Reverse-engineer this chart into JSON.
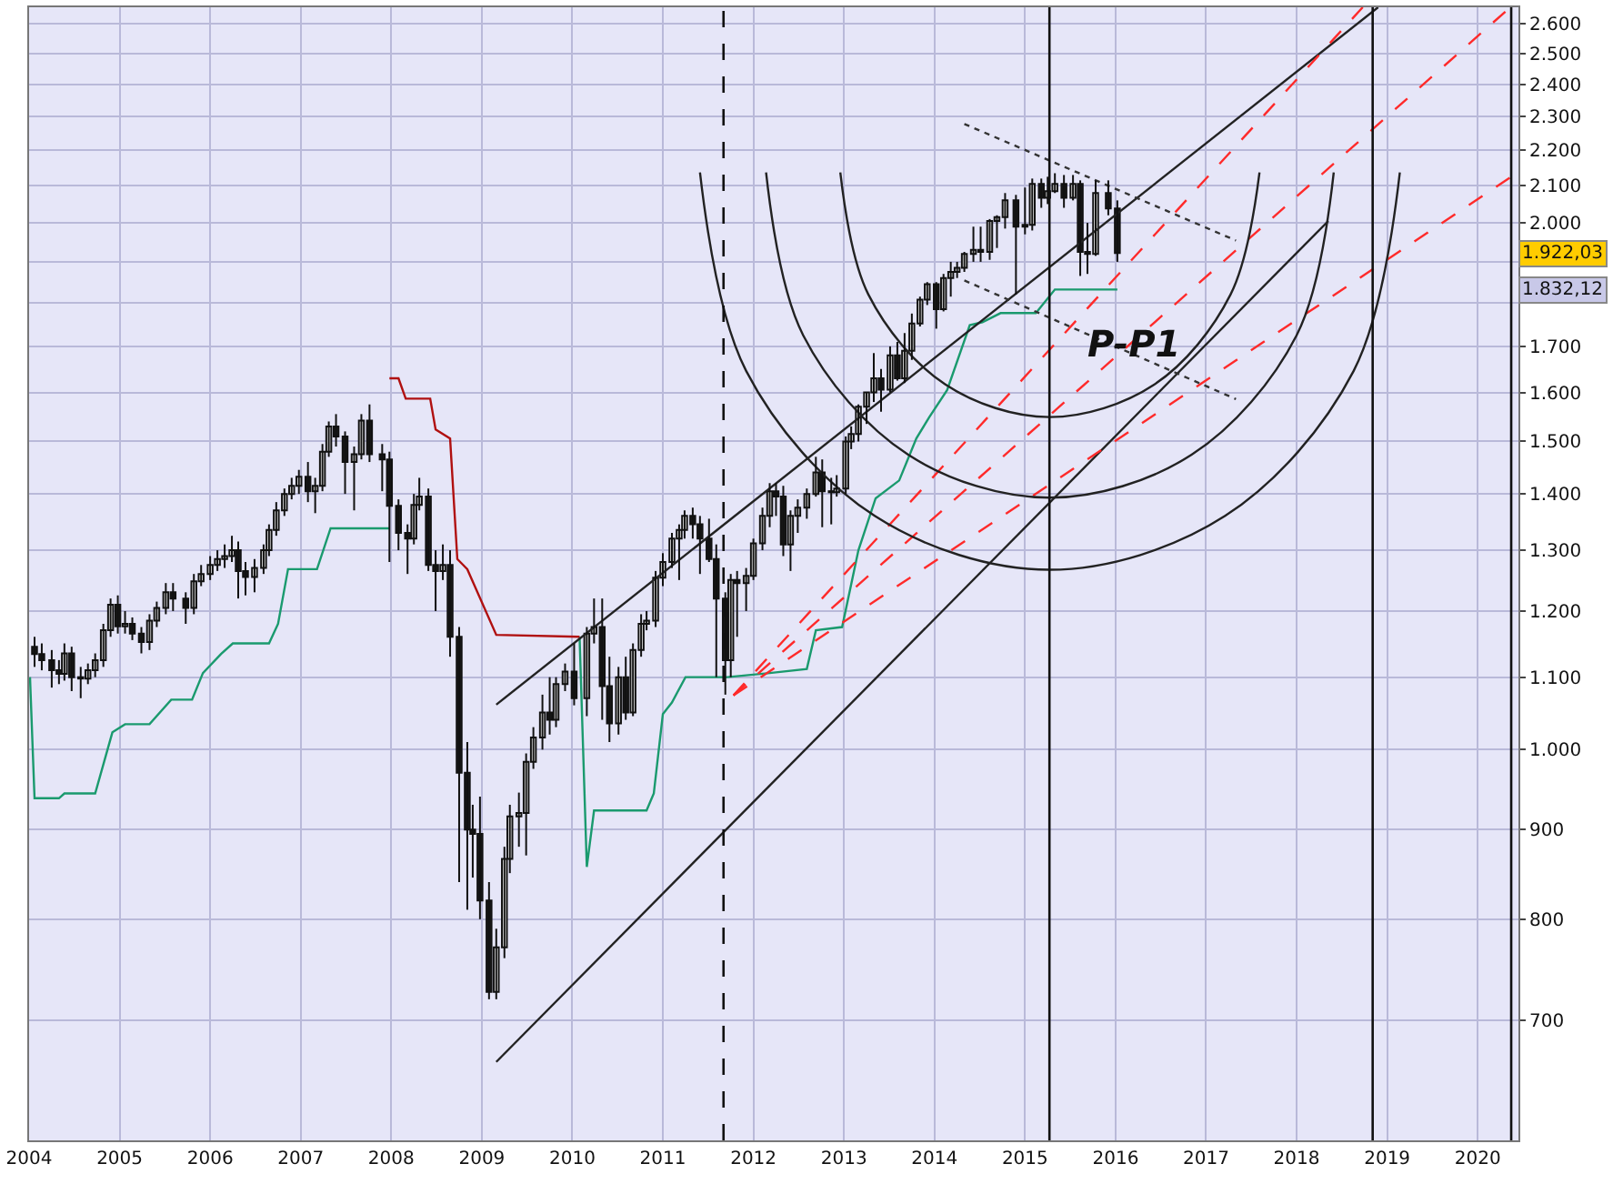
{
  "chart_data": {
    "type": "candlestick",
    "x": [
      2004.06,
      2004.14,
      2004.25,
      2004.33,
      2004.39,
      2004.47,
      2004.57,
      2004.65,
      2004.73,
      2004.82,
      2004.9,
      2004.98,
      2005.06,
      2005.14,
      2005.24,
      2005.33,
      2005.41,
      2005.51,
      2005.59,
      2005.73,
      2005.82,
      2005.9,
      2006.0,
      2006.08,
      2006.16,
      2006.24,
      2006.31,
      2006.39,
      2006.49,
      2006.59,
      2006.65,
      2006.73,
      2006.82,
      2006.9,
      2006.98,
      2007.08,
      2007.16,
      2007.24,
      2007.31,
      2007.39,
      2007.49,
      2007.59,
      2007.67,
      2007.76,
      2007.9,
      2007.98,
      2008.08,
      2008.18,
      2008.25,
      2008.31,
      2008.41,
      2008.49,
      2008.57,
      2008.65,
      2008.75,
      2008.84,
      2008.9,
      2008.98,
      2009.08,
      2009.16,
      2009.25,
      2009.31,
      2009.41,
      2009.49,
      2009.57,
      2009.67,
      2009.75,
      2009.82,
      2009.92,
      2010.02,
      2010.16,
      2010.24,
      2010.33,
      2010.41,
      2010.51,
      2010.59,
      2010.67,
      2010.76,
      2010.82,
      2010.92,
      2011.0,
      2011.1,
      2011.18,
      2011.24,
      2011.33,
      2011.41,
      2011.51,
      2011.59,
      2011.69,
      2011.75,
      2011.82,
      2011.92,
      2012.0,
      2012.1,
      2012.18,
      2012.25,
      2012.33,
      2012.41,
      2012.49,
      2012.59,
      2012.69,
      2012.76,
      2012.86,
      2012.92,
      2013.02,
      2013.08,
      2013.16,
      2013.25,
      2013.33,
      2013.41,
      2013.51,
      2013.59,
      2013.67,
      2013.75,
      2013.84,
      2013.92,
      2014.02,
      2014.1,
      2014.18,
      2014.25,
      2014.33,
      2014.43,
      2014.51,
      2014.61,
      2014.69,
      2014.78,
      2014.9,
      2015.0,
      2015.08,
      2015.18,
      2015.25,
      2015.33,
      2015.43,
      2015.53,
      2015.61,
      2015.69,
      2015.78,
      2015.92,
      2016.02
    ],
    "ohlc": [
      [
        1145,
        1160,
        1115,
        1134
      ],
      [
        1134,
        1150,
        1110,
        1125
      ],
      [
        1125,
        1140,
        1085,
        1110
      ],
      [
        1110,
        1125,
        1090,
        1105
      ],
      [
        1105,
        1150,
        1095,
        1135
      ],
      [
        1135,
        1145,
        1080,
        1100
      ],
      [
        1100,
        1115,
        1070,
        1098
      ],
      [
        1098,
        1120,
        1090,
        1110
      ],
      [
        1110,
        1135,
        1100,
        1125
      ],
      [
        1125,
        1180,
        1115,
        1170
      ],
      [
        1170,
        1220,
        1160,
        1210
      ],
      [
        1210,
        1225,
        1165,
        1176
      ],
      [
        1176,
        1200,
        1165,
        1180
      ],
      [
        1180,
        1190,
        1155,
        1165
      ],
      [
        1165,
        1175,
        1135,
        1152
      ],
      [
        1152,
        1195,
        1140,
        1185
      ],
      [
        1185,
        1215,
        1175,
        1205
      ],
      [
        1205,
        1245,
        1195,
        1230
      ],
      [
        1230,
        1245,
        1200,
        1220
      ],
      [
        1220,
        1230,
        1180,
        1205
      ],
      [
        1205,
        1260,
        1195,
        1248
      ],
      [
        1248,
        1275,
        1240,
        1260
      ],
      [
        1260,
        1290,
        1250,
        1275
      ],
      [
        1275,
        1300,
        1265,
        1285
      ],
      [
        1285,
        1310,
        1270,
        1290
      ],
      [
        1290,
        1325,
        1280,
        1300
      ],
      [
        1300,
        1315,
        1220,
        1265
      ],
      [
        1265,
        1280,
        1225,
        1255
      ],
      [
        1255,
        1285,
        1230,
        1270
      ],
      [
        1270,
        1310,
        1260,
        1300
      ],
      [
        1300,
        1345,
        1290,
        1335
      ],
      [
        1335,
        1385,
        1325,
        1370
      ],
      [
        1370,
        1410,
        1360,
        1400
      ],
      [
        1400,
        1430,
        1390,
        1415
      ],
      [
        1415,
        1445,
        1400,
        1432
      ],
      [
        1432,
        1460,
        1385,
        1405
      ],
      [
        1405,
        1430,
        1365,
        1415
      ],
      [
        1415,
        1495,
        1405,
        1480
      ],
      [
        1480,
        1540,
        1470,
        1530
      ],
      [
        1530,
        1555,
        1490,
        1510
      ],
      [
        1510,
        1520,
        1400,
        1460
      ],
      [
        1460,
        1490,
        1370,
        1475
      ],
      [
        1475,
        1555,
        1465,
        1542
      ],
      [
        1542,
        1575,
        1460,
        1475
      ],
      [
        1475,
        1495,
        1405,
        1465
      ],
      [
        1465,
        1480,
        1280,
        1378
      ],
      [
        1378,
        1390,
        1300,
        1330
      ],
      [
        1330,
        1345,
        1260,
        1320
      ],
      [
        1320,
        1400,
        1310,
        1380
      ],
      [
        1380,
        1430,
        1370,
        1395
      ],
      [
        1395,
        1410,
        1265,
        1275
      ],
      [
        1275,
        1300,
        1200,
        1265
      ],
      [
        1265,
        1310,
        1250,
        1275
      ],
      [
        1275,
        1300,
        1130,
        1160
      ],
      [
        1160,
        1175,
        840,
        970
      ],
      [
        970,
        1010,
        810,
        900
      ],
      [
        900,
        930,
        845,
        895
      ],
      [
        895,
        940,
        800,
        820
      ],
      [
        820,
        840,
        720,
        727
      ],
      [
        727,
        790,
        720,
        771
      ],
      [
        771,
        880,
        760,
        866
      ],
      [
        866,
        930,
        850,
        916
      ],
      [
        916,
        945,
        880,
        920
      ],
      [
        920,
        995,
        870,
        984
      ],
      [
        984,
        1030,
        975,
        1016
      ],
      [
        1016,
        1075,
        1000,
        1050
      ],
      [
        1050,
        1100,
        1020,
        1040
      ],
      [
        1040,
        1100,
        1030,
        1090
      ],
      [
        1090,
        1120,
        1080,
        1108
      ],
      [
        1108,
        1150,
        1060,
        1070
      ],
      [
        1070,
        1175,
        1045,
        1165
      ],
      [
        1165,
        1220,
        1150,
        1175
      ],
      [
        1175,
        1220,
        1040,
        1087
      ],
      [
        1087,
        1130,
        1010,
        1035
      ],
      [
        1035,
        1115,
        1020,
        1100
      ],
      [
        1100,
        1130,
        1040,
        1050
      ],
      [
        1050,
        1150,
        1045,
        1140
      ],
      [
        1140,
        1195,
        1130,
        1180
      ],
      [
        1180,
        1200,
        1170,
        1185
      ],
      [
        1185,
        1265,
        1175,
        1254
      ],
      [
        1254,
        1295,
        1240,
        1280
      ],
      [
        1280,
        1330,
        1270,
        1320
      ],
      [
        1320,
        1345,
        1250,
        1335
      ],
      [
        1335,
        1370,
        1320,
        1360
      ],
      [
        1360,
        1375,
        1320,
        1345
      ],
      [
        1345,
        1360,
        1260,
        1320
      ],
      [
        1320,
        1355,
        1280,
        1285
      ],
      [
        1285,
        1310,
        1100,
        1220
      ],
      [
        1220,
        1230,
        1075,
        1125
      ],
      [
        1125,
        1260,
        1100,
        1250
      ],
      [
        1250,
        1265,
        1160,
        1245
      ],
      [
        1245,
        1270,
        1200,
        1257
      ],
      [
        1257,
        1320,
        1250,
        1312
      ],
      [
        1312,
        1375,
        1300,
        1360
      ],
      [
        1360,
        1420,
        1340,
        1405
      ],
      [
        1405,
        1420,
        1360,
        1395
      ],
      [
        1395,
        1415,
        1290,
        1310
      ],
      [
        1310,
        1370,
        1265,
        1360
      ],
      [
        1360,
        1390,
        1330,
        1375
      ],
      [
        1375,
        1410,
        1355,
        1400
      ],
      [
        1400,
        1470,
        1395,
        1440
      ],
      [
        1440,
        1465,
        1340,
        1405
      ],
      [
        1405,
        1430,
        1345,
        1403
      ],
      [
        1403,
        1435,
        1395,
        1410
      ],
      [
        1410,
        1510,
        1400,
        1500
      ],
      [
        1500,
        1530,
        1485,
        1515
      ],
      [
        1515,
        1575,
        1500,
        1570
      ],
      [
        1570,
        1600,
        1535,
        1600
      ],
      [
        1600,
        1685,
        1580,
        1630
      ],
      [
        1630,
        1650,
        1560,
        1606
      ],
      [
        1606,
        1700,
        1600,
        1680
      ],
      [
        1680,
        1710,
        1625,
        1630
      ],
      [
        1630,
        1730,
        1620,
        1690
      ],
      [
        1690,
        1775,
        1670,
        1752
      ],
      [
        1752,
        1815,
        1745,
        1808
      ],
      [
        1808,
        1850,
        1795,
        1845
      ],
      [
        1845,
        1850,
        1740,
        1785
      ],
      [
        1785,
        1870,
        1780,
        1860
      ],
      [
        1860,
        1900,
        1815,
        1875
      ],
      [
        1875,
        1900,
        1860,
        1885
      ],
      [
        1885,
        1925,
        1875,
        1920
      ],
      [
        1920,
        1990,
        1900,
        1930
      ],
      [
        1930,
        1990,
        1900,
        1925
      ],
      [
        1925,
        2010,
        1905,
        2005
      ],
      [
        2005,
        2020,
        1935,
        2015
      ],
      [
        2015,
        2080,
        1985,
        2060
      ],
      [
        2060,
        2075,
        1820,
        1990
      ],
      [
        1990,
        2095,
        1970,
        1995
      ],
      [
        1995,
        2120,
        1980,
        2105
      ],
      [
        2105,
        2120,
        2040,
        2067
      ],
      [
        2067,
        2125,
        2050,
        2085
      ],
      [
        2085,
        2135,
        2080,
        2105
      ],
      [
        2105,
        2130,
        2040,
        2067
      ],
      [
        2067,
        2130,
        2060,
        2105
      ],
      [
        2105,
        2115,
        1865,
        1925
      ],
      [
        1925,
        2000,
        1870,
        1920
      ],
      [
        1920,
        2115,
        1915,
        2080
      ],
      [
        2080,
        2115,
        2020,
        2038
      ],
      [
        2038,
        2060,
        1900,
        1922.03
      ]
    ],
    "series": [
      {
        "type": "line",
        "color": "#1a9a6e",
        "line_style": "solid",
        "x": [
          2004.01,
          2004.06,
          2004.33,
          2004.39,
          2004.73,
          2004.92,
          2005.06,
          2005.33,
          2005.57,
          2005.8,
          2005.92,
          2006.12,
          2006.25,
          2006.65,
          2006.75,
          2006.86,
          2007.18,
          2007.33,
          2007.98,
          2008.0,
          2010.08,
          2010.16,
          2010.24,
          2010.82,
          2010.9,
          2011.0,
          2011.1,
          2011.25,
          2011.71,
          2012.18,
          2012.59,
          2012.69,
          2012.98,
          2013.16,
          2013.35,
          2013.61,
          2013.8,
          2013.94,
          2014.14,
          2014.39,
          2014.53,
          2014.73,
          2015.12,
          2015.33,
          2016.02
        ],
        "values": [
          1100,
          938,
          938,
          944,
          944,
          1023,
          1034,
          1034,
          1068,
          1068,
          1106,
          1134,
          1150,
          1150,
          1180,
          1268,
          1268,
          1338,
          1338,
          null,
          1160,
          857,
          923,
          923,
          944,
          1048,
          1064,
          1100,
          1100,
          1106,
          1112,
          1170,
          1175,
          1300,
          1392,
          1425,
          1506,
          1548,
          1605,
          1748,
          1755,
          1776,
          1776,
          1832.12,
          1832.12
        ]
      },
      {
        "type": "line",
        "color": "#b01010",
        "line_style": "solid",
        "x": [
          2007.98,
          2008.08,
          2008.16,
          2008.43,
          2008.49,
          2008.65,
          2008.73,
          2008.84,
          2009.16,
          2010.08
        ],
        "values": [
          1630,
          1630,
          1587,
          1587,
          1524,
          1506,
          1285,
          1268,
          1163,
          1160
        ]
      },
      {
        "type": "line",
        "color": "#222222",
        "line_style": "solid",
        "x": [
          2009.16,
          2018.9
        ],
        "values": [
          1061,
          2656
        ]
      },
      {
        "type": "line",
        "color": "#222222",
        "line_style": "solid",
        "x": [
          2009.16,
          2018.35
        ],
        "values": [
          663,
          2005
        ]
      },
      {
        "type": "line",
        "color": "#ff2a2a",
        "line_style": "dashed",
        "x": [
          2011.78,
          2018.73
        ],
        "values": [
          1074,
          2656
        ]
      },
      {
        "type": "line",
        "color": "#ff2a2a",
        "line_style": "dashed",
        "x": [
          2011.78,
          2020.31
        ],
        "values": [
          1074,
          2642
        ]
      },
      {
        "type": "line",
        "color": "#ff2a2a",
        "line_style": "dashed",
        "x": [
          2011.78,
          2020.39
        ],
        "values": [
          1074,
          2128
        ]
      },
      {
        "type": "line",
        "color": "#222222",
        "line_style": "solid",
        "x": [
          2012.96,
          2013.27,
          2014.12,
          2015.27,
          2016.43,
          2017.27,
          2017.59
        ],
        "values": [
          2137,
          1820,
          1617,
          1549,
          1617,
          1820,
          2137
        ]
      },
      {
        "type": "line",
        "color": "#222222",
        "line_style": "solid",
        "x": [
          2012.14,
          2012.55,
          2013.71,
          2015.27,
          2016.84,
          2018.0,
          2018.41
        ],
        "values": [
          2137,
          1725,
          1474,
          1393,
          1474,
          1725,
          2137
        ]
      },
      {
        "type": "line",
        "color": "#222222",
        "line_style": "solid",
        "x": [
          2011.41,
          2011.92,
          2013.34,
          2015.27,
          2017.21,
          2018.63,
          2019.14
        ],
        "values": [
          2137,
          1646,
          1360,
          1267,
          1360,
          1646,
          2137
        ]
      },
      {
        "type": "line",
        "color": "#333333",
        "line_style": "dotted",
        "x": [
          2014.33,
          2017.33
        ],
        "values": [
          2278,
          1954
        ]
      },
      {
        "type": "line",
        "color": "#333333",
        "line_style": "dotted",
        "x": [
          2014.33,
          2017.33
        ],
        "values": [
          1854,
          1586
        ]
      }
    ],
    "log": true,
    "xlim": [
      2004.0,
      2020.45
    ],
    "xticks": [
      2004,
      2005,
      2006,
      2007,
      2008,
      2009,
      2010,
      2011,
      2012,
      2013,
      2014,
      2015,
      2016,
      2017,
      2018,
      2019,
      2020
    ],
    "ylim": [
      598,
      2656
    ],
    "yticks": [
      700,
      800,
      900,
      {
        "value": 1000,
        "label": "1.000"
      },
      {
        "value": 1100,
        "label": "1.100"
      },
      {
        "value": 1200,
        "label": "1.200"
      },
      {
        "value": 1300,
        "label": "1.300"
      },
      {
        "value": 1400,
        "label": "1.400"
      },
      {
        "value": 1500,
        "label": "1.500"
      },
      {
        "value": 1600,
        "label": "1.600"
      },
      {
        "value": 1700,
        "label": "1.700"
      },
      {
        "value": 1800,
        "label": null
      },
      {
        "value": 1900,
        "label": null
      },
      {
        "value": 2000,
        "label": "2.000"
      },
      {
        "value": 2100,
        "label": "2.100"
      },
      {
        "value": 2200,
        "label": "2.200"
      },
      {
        "value": 2300,
        "label": "2.300"
      },
      {
        "value": 2400,
        "label": "2.400"
      },
      {
        "value": 2500,
        "label": "2.500"
      },
      {
        "value": 2600,
        "label": "2.600"
      }
    ],
    "ref_lines": [
      {
        "axis": "x",
        "value": 2011.67,
        "color": "#111111",
        "line_style": "dashed"
      },
      {
        "axis": "x",
        "value": 2015.27,
        "color": "#111111",
        "line_style": "solid"
      },
      {
        "axis": "x",
        "value": 2018.84,
        "color": "#111111",
        "line_style": "solid"
      },
      {
        "axis": "x",
        "value": 2020.37,
        "color": "#111111",
        "line_style": "solid"
      }
    ],
    "grid": true,
    "annotations": [
      "P-P1",
      {
        "text": "1.922,03",
        "x": 2020.45,
        "y": 1922.03
      },
      {
        "text": "1.832,12",
        "x": 2020.45,
        "y": 1832.12
      }
    ]
  }
}
